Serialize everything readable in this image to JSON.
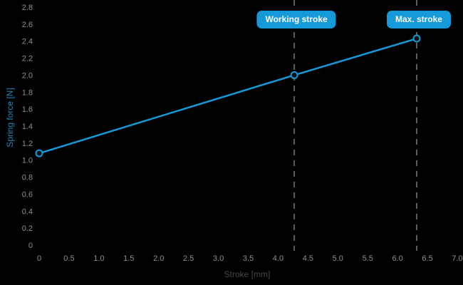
{
  "chart_data": {
    "type": "line",
    "title": "",
    "xlabel": "Stroke [mm]",
    "ylabel": "Spring force [N]",
    "xlim": [
      0,
      7
    ],
    "ylim": [
      0,
      2.8
    ],
    "grid": false,
    "legend": "none",
    "x_ticks": [
      "0",
      "0.5",
      "1.0",
      "1.5",
      "2.0",
      "2.5",
      "3.0",
      "3.5",
      "4.0",
      "4.5",
      "5.0",
      "5.5",
      "6.0",
      "6.5",
      "7.0"
    ],
    "y_ticks": [
      "0",
      "0.2",
      "0.4",
      "0.6",
      "0.8",
      "1.0",
      "1.2",
      "1.4",
      "1.6",
      "1.8",
      "2.0",
      "2.2",
      "2.4",
      "2.6",
      "2.8"
    ],
    "series": [
      {
        "name": "Spring force",
        "color": "#1699d8",
        "points": [
          {
            "x": 0.0,
            "y": 1.08
          },
          {
            "x": 4.27,
            "y": 2.0
          },
          {
            "x": 6.32,
            "y": 2.43
          }
        ]
      }
    ],
    "annotations": [
      {
        "label": "Working stroke",
        "x": 4.27
      },
      {
        "label": "Max. stroke",
        "x": 6.32
      }
    ]
  },
  "colors": {
    "background": "#000000",
    "line": "#1699d8",
    "badge_background": "#1699d8",
    "badge_text": "#ffffff",
    "tick_text": "#8f8f8f",
    "x_label_text": "#474747",
    "y_label_text": "#1f87b5",
    "dashed_line": "#5f5f5f",
    "marker_fill": "#101010"
  }
}
